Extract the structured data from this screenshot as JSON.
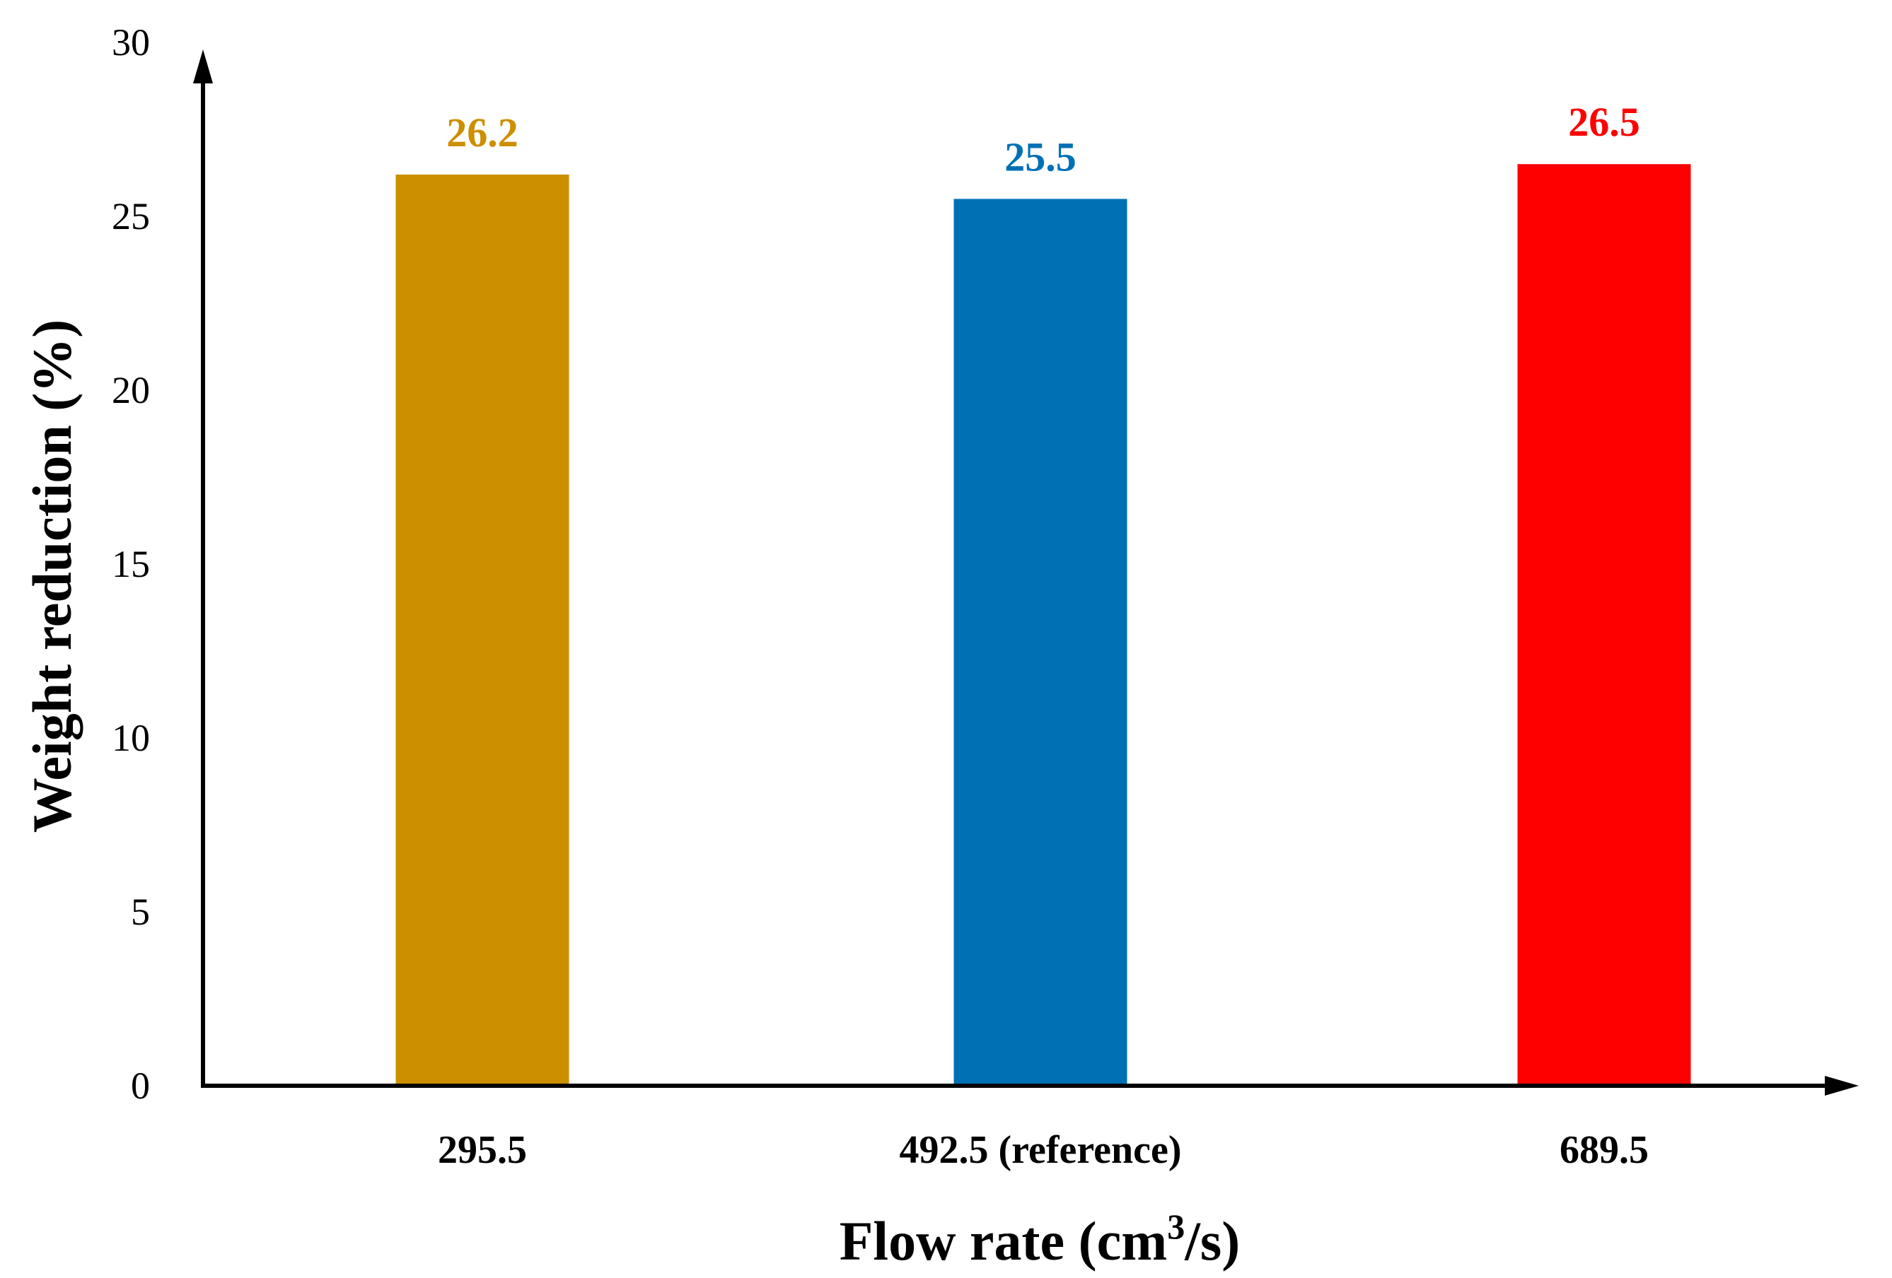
{
  "chart_data": {
    "type": "bar",
    "categories": [
      "295.5",
      "492.5 (reference)",
      "689.5"
    ],
    "values": [
      26.2,
      25.5,
      26.5
    ],
    "value_labels": [
      "26.2",
      "25.5",
      "26.5"
    ],
    "colors": [
      "#cc8f00",
      "#0070b4",
      "#ff0000"
    ],
    "title": "",
    "xlabel_main": "Flow rate (cm",
    "xlabel_sup": "3",
    "xlabel_end": "/s)",
    "ylabel": "Weight reduction (%)",
    "ylim": [
      0,
      30
    ],
    "yticks": [
      "0",
      "5",
      "10",
      "15",
      "20",
      "25",
      "30"
    ],
    "grid": false,
    "legend": "none"
  }
}
